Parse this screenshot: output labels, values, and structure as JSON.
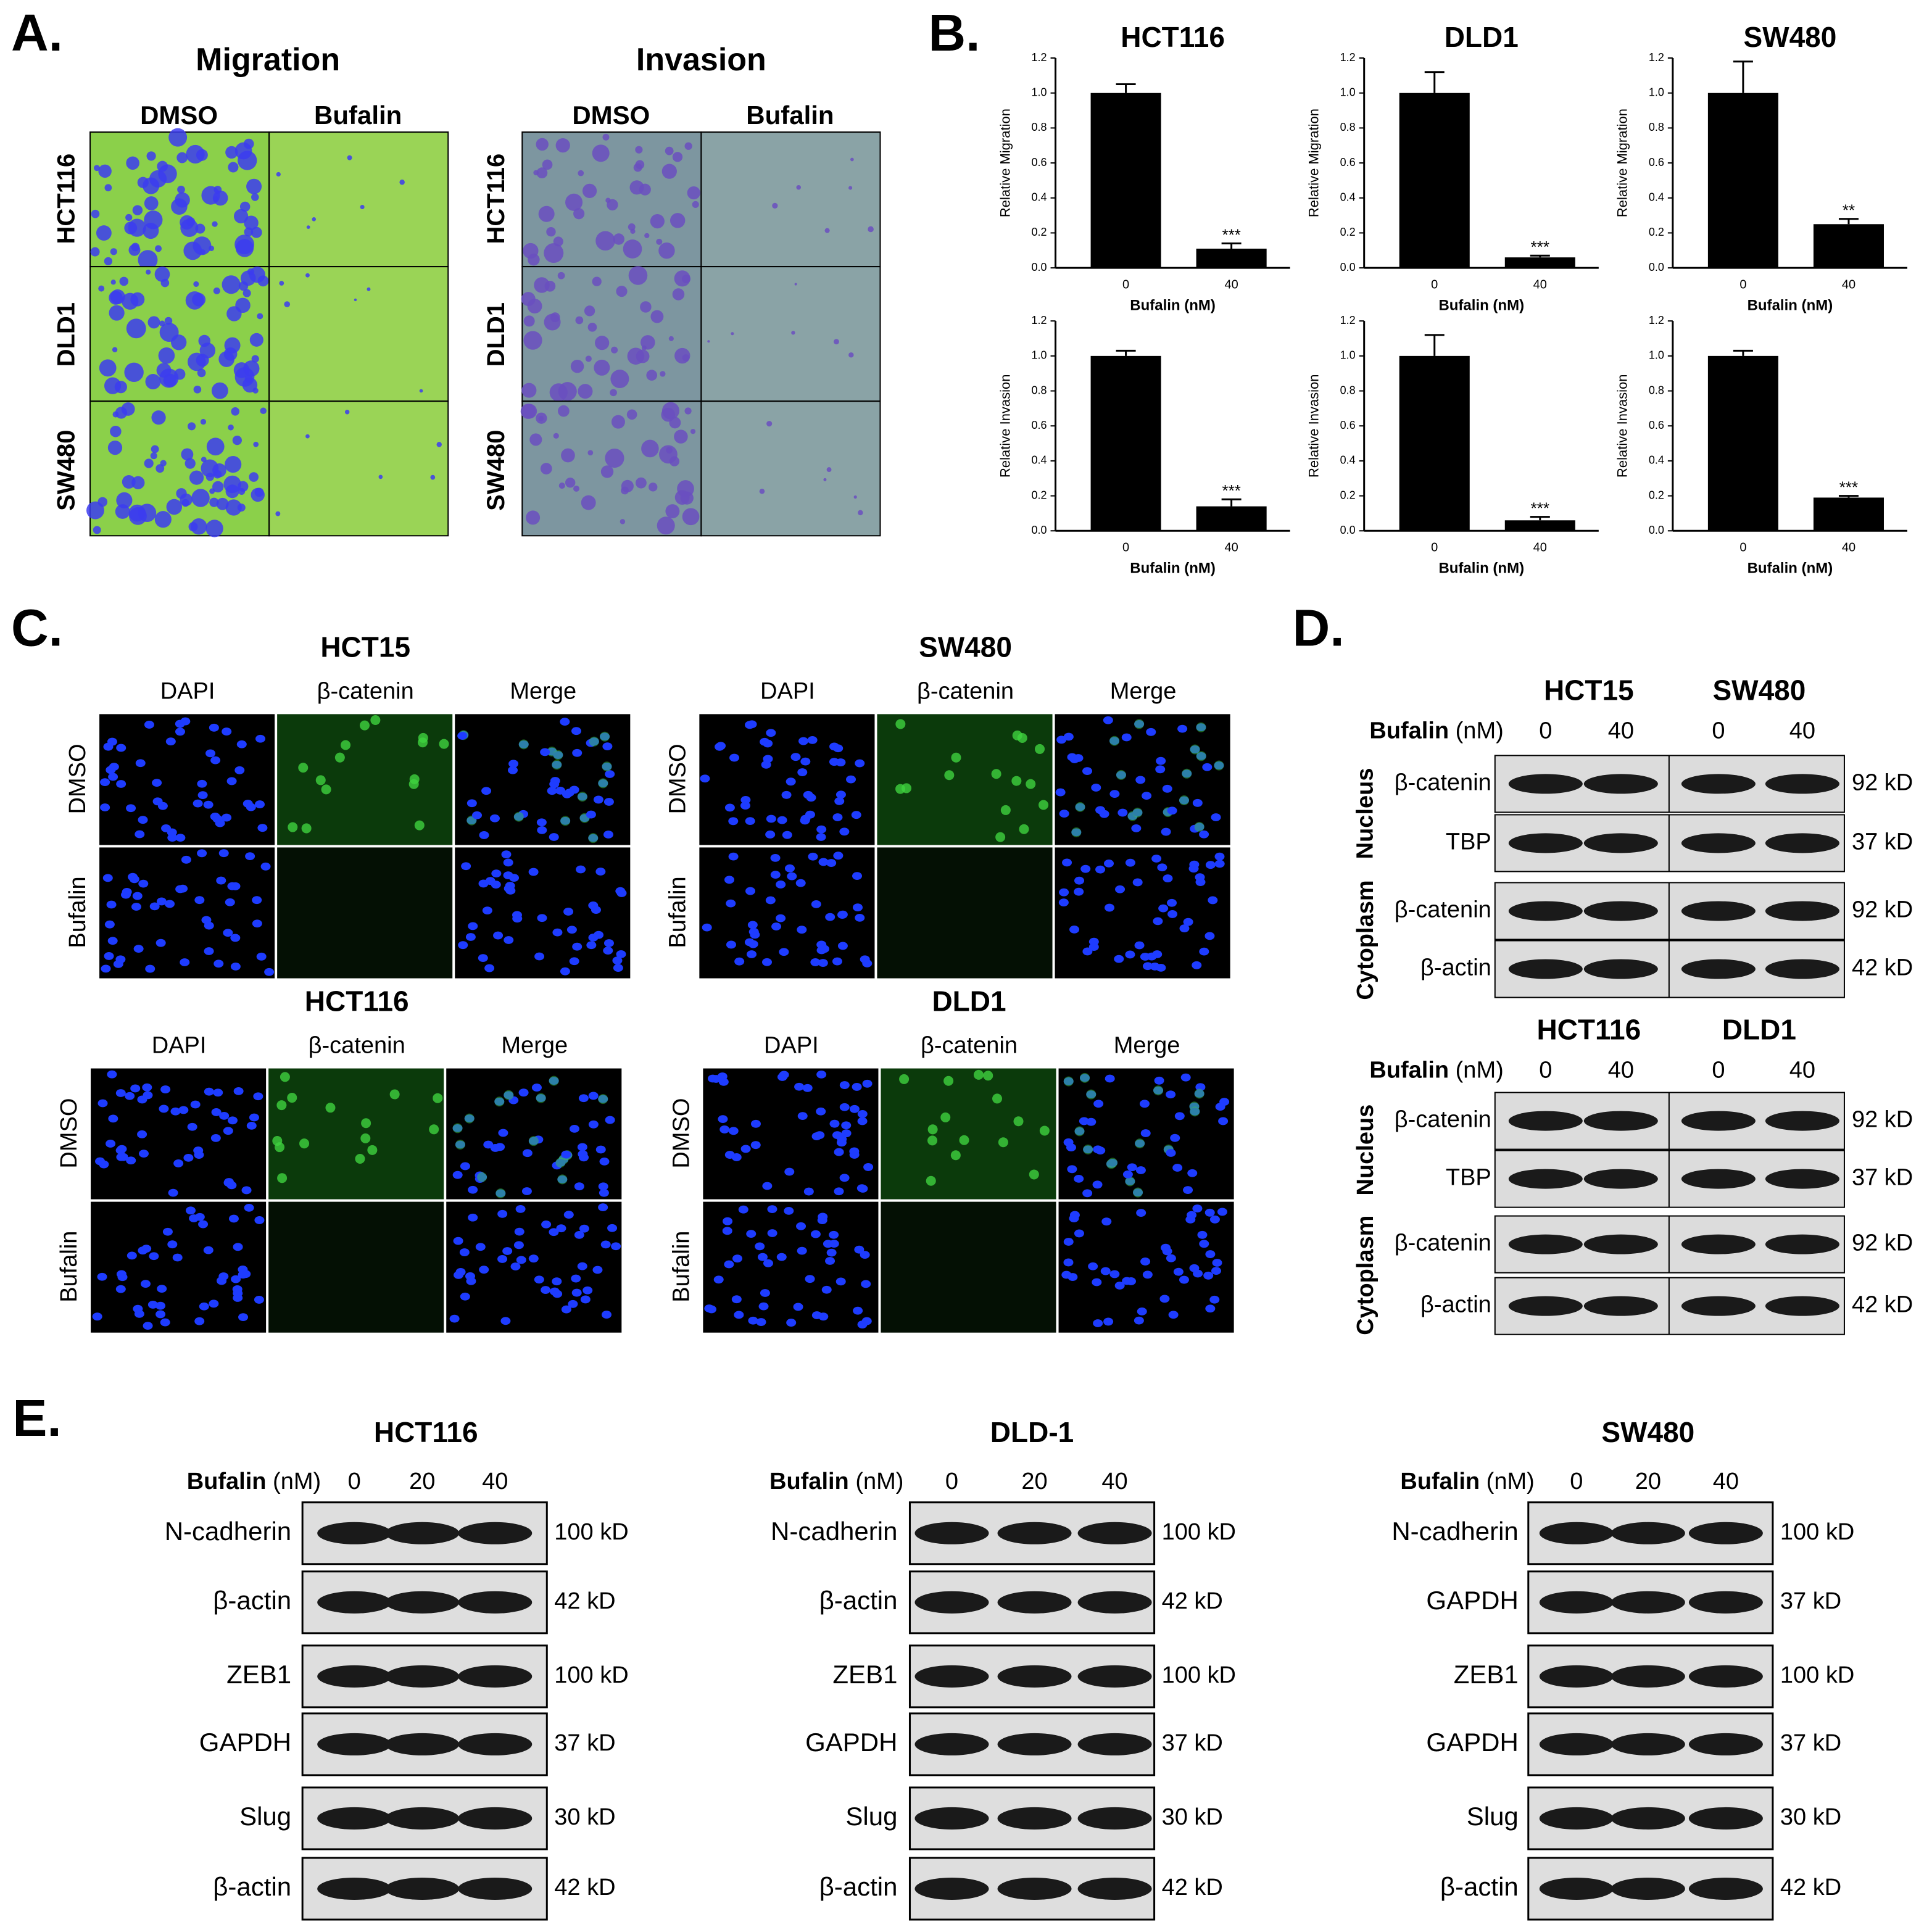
{
  "panel_labels": [
    "A.",
    "B.",
    "C.",
    "D.",
    "E."
  ],
  "panel_a": {
    "groups": [
      {
        "title": "Migration",
        "columns": [
          "DMSO",
          "Bufalin"
        ]
      },
      {
        "title": "Invasion",
        "columns": [
          "DMSO",
          "Bufalin"
        ]
      }
    ],
    "rows": [
      "HCT116",
      "DLD1",
      "SW480"
    ]
  },
  "chart_data": [
    {
      "type": "bar",
      "title": "HCT116",
      "ylabel": "Relative Migration",
      "xlabel": "Bufalin (nM)",
      "categories": [
        "0",
        "40"
      ],
      "values": [
        1.0,
        0.11
      ],
      "errors": [
        0.05,
        0.03
      ],
      "annotation": "***",
      "color": "#000000",
      "ylim": [
        0,
        1.2
      ],
      "yticks": [
        {
          "value": 0,
          "label": "0.0"
        },
        0.2,
        0.4,
        0.6,
        0.8,
        {
          "value": 1,
          "label": "1.0"
        },
        1.2
      ]
    },
    {
      "type": "bar",
      "title": "DLD1",
      "ylabel": "Relative Migration",
      "xlabel": "Bufalin (nM)",
      "categories": [
        "0",
        "40"
      ],
      "values": [
        1.0,
        0.06
      ],
      "errors": [
        0.12,
        0.01
      ],
      "annotation": "***",
      "color": "#000000",
      "ylim": [
        0,
        1.2
      ],
      "yticks": [
        {
          "value": 0,
          "label": "0.0"
        },
        0.2,
        0.4,
        0.6,
        0.8,
        {
          "value": 1,
          "label": "1.0"
        },
        1.2
      ]
    },
    {
      "type": "bar",
      "title": "SW480",
      "ylabel": "Relative Migration",
      "xlabel": "Bufalin (nM)",
      "categories": [
        "0",
        "40"
      ],
      "values": [
        1.0,
        0.25
      ],
      "errors": [
        0.18,
        0.03
      ],
      "annotation": "**",
      "color": "#000000",
      "ylim": [
        0,
        1.2
      ],
      "yticks": [
        {
          "value": 0,
          "label": "0.0"
        },
        0.2,
        0.4,
        0.6,
        0.8,
        {
          "value": 1,
          "label": "1.0"
        },
        1.2
      ]
    },
    {
      "type": "bar",
      "ylabel": "Relative Invasion",
      "xlabel": "Bufalin (nM)",
      "categories": [
        "0",
        "40"
      ],
      "values": [
        1.0,
        0.14
      ],
      "errors": [
        0.03,
        0.04
      ],
      "annotation": "***",
      "color": "#000000",
      "ylim": [
        0,
        1.2
      ],
      "yticks": [
        {
          "value": 0,
          "label": "0.0"
        },
        0.2,
        0.4,
        0.6,
        0.8,
        {
          "value": 1,
          "label": "1.0"
        },
        1.2
      ]
    },
    {
      "type": "bar",
      "ylabel": "Relative Invasion",
      "xlabel": "Bufalin (nM)",
      "categories": [
        "0",
        "40"
      ],
      "values": [
        1.0,
        0.06
      ],
      "errors": [
        0.12,
        0.02
      ],
      "annotation": "***",
      "color": "#000000",
      "ylim": [
        0,
        1.2
      ],
      "yticks": [
        {
          "value": 0,
          "label": "0.0"
        },
        0.2,
        0.4,
        0.6,
        0.8,
        {
          "value": 1,
          "label": "1.0"
        },
        1.2
      ]
    },
    {
      "type": "bar",
      "ylabel": "Relative Invasion",
      "xlabel": "Bufalin (nM)",
      "categories": [
        "0",
        "40"
      ],
      "values": [
        1.0,
        0.19
      ],
      "errors": [
        0.03,
        0.01
      ],
      "annotation": "***",
      "color": "#000000",
      "ylim": [
        0,
        1.2
      ],
      "yticks": [
        {
          "value": 0,
          "label": "0.0"
        },
        0.2,
        0.4,
        0.6,
        0.8,
        {
          "value": 1,
          "label": "1.0"
        },
        1.2
      ]
    }
  ],
  "panel_c": {
    "columns": [
      "DAPI",
      "β-catenin",
      "Merge"
    ],
    "rows": [
      "DMSO",
      "Bufalin"
    ],
    "cell_lines": [
      "HCT15",
      "SW480",
      "HCT116",
      "DLD1"
    ]
  },
  "panel_d": {
    "treatment": "Bufalin",
    "unit": "(nM)",
    "doses": [
      "0",
      "40"
    ],
    "fractions": [
      "Nucleus",
      "Cytoplasm"
    ],
    "blocks": [
      {
        "cell_lines": [
          "HCT15",
          "SW480"
        ]
      },
      {
        "cell_lines": [
          "HCT116",
          "DLD1"
        ]
      }
    ],
    "rows": [
      {
        "protein": "β-catenin",
        "size": "92 kD"
      },
      {
        "protein": "TBP",
        "size": "37 kD"
      },
      {
        "protein": "β-catenin",
        "size": "92 kD"
      },
      {
        "protein": "β-actin",
        "size": "42 kD"
      }
    ]
  },
  "panel_e": {
    "treatment": "Bufalin",
    "unit": "(nM)",
    "doses": [
      "0",
      "20",
      "40"
    ],
    "cell_lines": [
      {
        "name": "HCT116",
        "rows": [
          {
            "protein": "N-cadherin",
            "size": "100 kD"
          },
          {
            "protein": "β-actin",
            "size": "42 kD"
          },
          {
            "protein": "ZEB1",
            "size": "100 kD"
          },
          {
            "protein": "GAPDH",
            "size": "37 kD"
          },
          {
            "protein": "Slug",
            "size": "30 kD"
          },
          {
            "protein": "β-actin",
            "size": "42 kD"
          }
        ]
      },
      {
        "name": "DLD-1",
        "rows": [
          {
            "protein": "N-cadherin",
            "size": "100 kD"
          },
          {
            "protein": "β-actin",
            "size": "42 kD"
          },
          {
            "protein": "ZEB1",
            "size": "100 kD"
          },
          {
            "protein": "GAPDH",
            "size": "37 kD"
          },
          {
            "protein": "Slug",
            "size": "30 kD"
          },
          {
            "protein": "β-actin",
            "size": "42 kD"
          }
        ]
      },
      {
        "name": "SW480",
        "rows": [
          {
            "protein": "N-cadherin",
            "size": "100 kD"
          },
          {
            "protein": "GAPDH",
            "size": "37 kD"
          },
          {
            "protein": "ZEB1",
            "size": "100 kD"
          },
          {
            "protein": "GAPDH",
            "size": "37 kD"
          },
          {
            "protein": "Slug",
            "size": "30 kD"
          },
          {
            "protein": "β-actin",
            "size": "42 kD"
          }
        ]
      }
    ]
  }
}
